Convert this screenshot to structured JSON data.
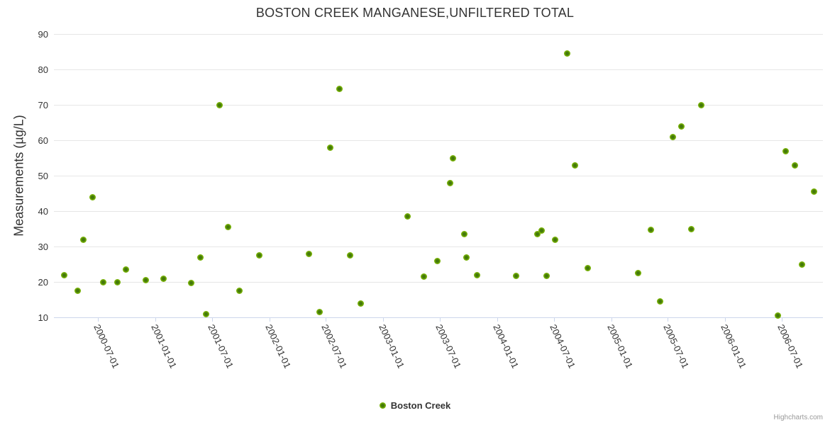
{
  "title": "BOSTON CREEK MANGANESE,UNFILTERED TOTAL",
  "credits_label": "Highcharts.com",
  "legend": {
    "series_label": "Boston Creek"
  },
  "colors": {
    "text": "#333333",
    "gridline": "#e6e6e6",
    "axis_tick": "#ccd6eb",
    "marker_outer": "#7cb800",
    "marker_mid": "#74ad08",
    "marker_inner": "#44790a",
    "credits_text": "#999999",
    "background": "#ffffff"
  },
  "chart_data": {
    "type": "scatter",
    "title": "BOSTON CREEK MANGANESE,UNFILTERED TOTAL",
    "xlabel": "",
    "ylabel": "Measurements (µg/L)",
    "ylim": [
      10,
      90
    ],
    "y_ticks": [
      10,
      20,
      30,
      40,
      50,
      60,
      70,
      80,
      90
    ],
    "x_ticks": [
      "2000-07-01",
      "2001-01-01",
      "2001-07-01",
      "2002-01-01",
      "2002-07-01",
      "2003-01-01",
      "2003-07-01",
      "2004-01-01",
      "2004-07-01",
      "2005-01-01",
      "2005-07-01",
      "2006-01-01",
      "2006-07-01"
    ],
    "grid": true,
    "legend_position": "bottom-center",
    "series": [
      {
        "name": "Boston Creek",
        "marker": "circle",
        "data": [
          [
            "2000-03-15",
            22
          ],
          [
            "2000-04-27",
            17.5
          ],
          [
            "2000-05-14",
            32
          ],
          [
            "2000-06-14",
            44
          ],
          [
            "2000-07-17",
            20
          ],
          [
            "2000-08-31",
            20
          ],
          [
            "2000-09-28",
            23.5
          ],
          [
            "2000-11-30",
            20.5
          ],
          [
            "2001-01-26",
            21
          ],
          [
            "2001-04-26",
            19.8
          ],
          [
            "2001-05-25",
            27
          ],
          [
            "2001-06-13",
            11
          ],
          [
            "2001-07-26",
            70
          ],
          [
            "2001-08-22",
            35.5
          ],
          [
            "2001-09-26",
            17.5
          ],
          [
            "2001-11-29",
            27.5
          ],
          [
            "2002-05-08",
            28
          ],
          [
            "2002-06-10",
            11.5
          ],
          [
            "2002-07-16",
            58
          ],
          [
            "2002-08-14",
            74.5
          ],
          [
            "2002-09-18",
            27.5
          ],
          [
            "2002-10-21",
            14
          ],
          [
            "2003-03-20",
            38.5
          ],
          [
            "2003-05-11",
            21.5
          ],
          [
            "2003-06-24",
            26
          ],
          [
            "2003-08-03",
            48
          ],
          [
            "2003-08-12",
            55
          ],
          [
            "2003-09-17",
            33.5
          ],
          [
            "2003-09-25",
            27
          ],
          [
            "2003-10-30",
            22
          ],
          [
            "2004-03-03",
            21.8
          ],
          [
            "2004-05-10",
            33.5
          ],
          [
            "2004-05-24",
            34.5
          ],
          [
            "2004-06-08",
            21.8
          ],
          [
            "2004-07-06",
            32
          ],
          [
            "2004-08-12",
            84.5
          ],
          [
            "2004-09-06",
            53
          ],
          [
            "2004-10-19",
            24
          ],
          [
            "2005-03-28",
            22.5
          ],
          [
            "2005-05-09",
            34.8
          ],
          [
            "2005-06-07",
            14.5
          ],
          [
            "2005-07-17",
            61
          ],
          [
            "2005-08-15",
            64
          ],
          [
            "2005-09-14",
            35
          ],
          [
            "2005-10-17",
            70
          ],
          [
            "2006-06-20",
            10.5
          ],
          [
            "2006-07-15",
            57
          ],
          [
            "2006-08-13",
            53
          ],
          [
            "2006-09-05",
            25
          ],
          [
            "2006-10-14",
            45.5
          ]
        ]
      }
    ]
  }
}
